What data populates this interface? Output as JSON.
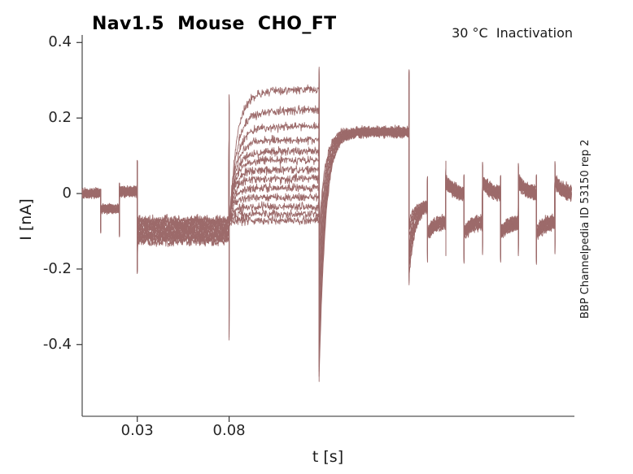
{
  "chart_data": {
    "type": "line",
    "title": "Nav1.5  Mouse  CHO_FT",
    "temp_label": "30 °C  Inactivation",
    "side_label": "BBP Channelpedia ID 53150 rep 2",
    "xlabel": "t [s]",
    "ylabel": "I [nA]",
    "xlim": [
      0,
      0.268
    ],
    "ylim": [
      -0.59,
      0.42
    ],
    "xticks": [
      0.03,
      0.08
    ],
    "xtick_labels": [
      "0.03",
      "0.08"
    ],
    "yticks": [
      0.4,
      0.2,
      0,
      -0.2,
      -0.4
    ],
    "ytick_labels": [
      "0.4",
      "0.2",
      "0",
      "-0.2",
      "-0.4"
    ],
    "line_color": "#9c6a6a",
    "axis_color": "#555555",
    "tick_color": "#333333",
    "grid": false,
    "legend": null,
    "n_sweeps": 13,
    "t_end": 0.2665,
    "dt": 0.0002,
    "protocol": {
      "pre": [
        {
          "t0": 0.0,
          "t1": 0.0101,
          "level": 0.0,
          "noise": 0.008,
          "sweep_spread": 0.014
        },
        {
          "t0": 0.0101,
          "t1": 0.0203,
          "level": -0.04,
          "noise": 0.008,
          "sweep_spread": 0.014
        },
        {
          "t0": 0.0203,
          "t1": 0.03,
          "level": 0.005,
          "noise": 0.01,
          "sweep_spread": 0.014
        },
        {
          "t0": 0.03,
          "t1": 0.08,
          "level": -0.098,
          "noise": 0.013,
          "sweep_spread": 0.056
        }
      ],
      "fan": {
        "t0": 0.08,
        "t1": 0.129,
        "plateaus": [
          0.28,
          0.225,
          0.18,
          0.145,
          0.115,
          0.09,
          0.065,
          0.04,
          0.015,
          -0.01,
          -0.035,
          -0.055,
          -0.072
        ],
        "start": -0.08,
        "tau_top": 0.004,
        "tau_bottom": 0.002,
        "creep_tau": 0.035,
        "noise": 0.011
      },
      "test": {
        "t0": 0.129,
        "t1": 0.178,
        "level": 0.163,
        "start_min": -0.48,
        "start_max": -0.1,
        "tau": 0.0035,
        "noise": 0.009,
        "sweep_spread": 0.014
      },
      "recovery": {
        "t0": 0.178,
        "t1": 0.188,
        "level": -0.028,
        "start_min": -0.21,
        "start_max": -0.08,
        "tau": 0.0032,
        "noise": 0.01,
        "sweep_spread": 0.014
      },
      "tail": {
        "edges": [
          0.188,
          0.198,
          0.2079,
          0.218,
          0.2278,
          0.2375,
          0.2473,
          0.2574
        ],
        "relax_tau": 0.0045,
        "low": {
          "start": -0.105,
          "end": -0.072,
          "noise": 0.011
        },
        "high": {
          "start": 0.032,
          "end": -0.004,
          "noise": 0.011
        },
        "sweep_spread": 0.024
      },
      "spikes": [
        {
          "t": 0.0101,
          "up": 0.012,
          "down": -0.105,
          "spread": 0.015
        },
        {
          "t": 0.0203,
          "up": 0.028,
          "down": -0.115,
          "spread": 0.015
        },
        {
          "t": 0.03,
          "up": 0.088,
          "down": -0.212,
          "spread": 0.02
        },
        {
          "t": 0.08,
          "up": 0.262,
          "down": -0.388,
          "spread": 0.09
        },
        {
          "t": 0.129,
          "up": 0.335,
          "down": -0.498,
          "spread": 0.16
        },
        {
          "t": 0.178,
          "up": 0.328,
          "down": -0.242,
          "spread": 0.06
        },
        {
          "t": 0.188,
          "up": 0.045,
          "down": -0.182,
          "spread": 0.03
        },
        {
          "t": 0.198,
          "up": 0.086,
          "down": -0.165,
          "spread": 0.03
        },
        {
          "t": 0.2079,
          "up": 0.05,
          "down": -0.185,
          "spread": 0.03
        },
        {
          "t": 0.218,
          "up": 0.083,
          "down": -0.162,
          "spread": 0.03
        },
        {
          "t": 0.2278,
          "up": 0.048,
          "down": -0.182,
          "spread": 0.03
        },
        {
          "t": 0.2375,
          "up": 0.08,
          "down": -0.165,
          "spread": 0.03
        },
        {
          "t": 0.2473,
          "up": 0.05,
          "down": -0.188,
          "spread": 0.03
        },
        {
          "t": 0.2574,
          "up": 0.085,
          "down": -0.16,
          "spread": 0.03
        }
      ]
    }
  }
}
